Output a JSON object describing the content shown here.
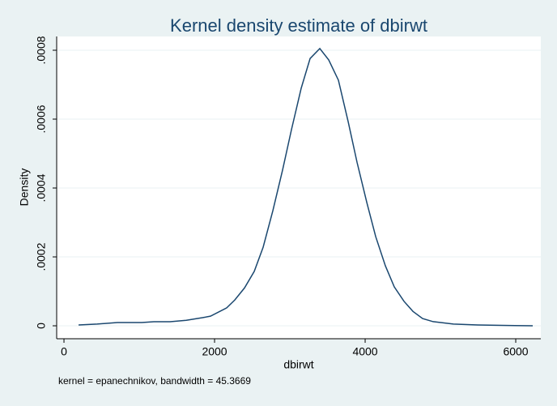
{
  "chart_data": {
    "type": "line",
    "title": "Kernel density estimate of dbirwt",
    "x_label": "dbirwt",
    "y_label": "Density",
    "note": "kernel = epanechnikov, bandwidth = 45.3669",
    "color": "#1a476f",
    "grid": true,
    "x": [
      194,
      441,
      710,
      870,
      1032,
      1194,
      1409,
      1624,
      1839,
      1946,
      2161,
      2269,
      2398,
      2527,
      2645,
      2774,
      2903,
      3022,
      3151,
      3269,
      3398,
      3516,
      3645,
      3774,
      3892,
      4022,
      4140,
      4269,
      4387,
      4516,
      4634,
      4763,
      4903,
      5172,
      5495,
      5817,
      6226
    ],
    "values": [
      2.4e-06,
      5e-06,
      9.4e-06,
      9.4e-06,
      9.4e-06,
      1.18e-05,
      1.18e-05,
      1.6e-05,
      2.35e-05,
      2.8e-05,
      5.2e-05,
      7.5e-05,
      0.00011,
      0.000158,
      0.000228,
      0.000334,
      0.000452,
      0.00057,
      0.00069,
      0.000776,
      0.000805,
      0.000772,
      0.000713,
      0.000593,
      0.000475,
      0.000358,
      0.000259,
      0.000174,
      0.000113,
      7.1e-05,
      4.2e-05,
      2.1e-05,
      1.2e-05,
      5e-06,
      2.4e-06,
      1.2e-06,
      0
    ],
    "xlim": [
      -97,
      6333
    ],
    "ylim": [
      -3.76e-05,
      0.00084
    ],
    "xticks": [
      0,
      2000,
      4000,
      6000
    ],
    "yticks": [
      0,
      {
        "value": 0.0002,
        "label": ".0002"
      },
      {
        "value": 0.0004,
        "label": ".0004"
      },
      {
        "value": 0.0006,
        "label": ".0006"
      },
      {
        "value": 0.0008,
        "label": ".0008"
      }
    ]
  }
}
